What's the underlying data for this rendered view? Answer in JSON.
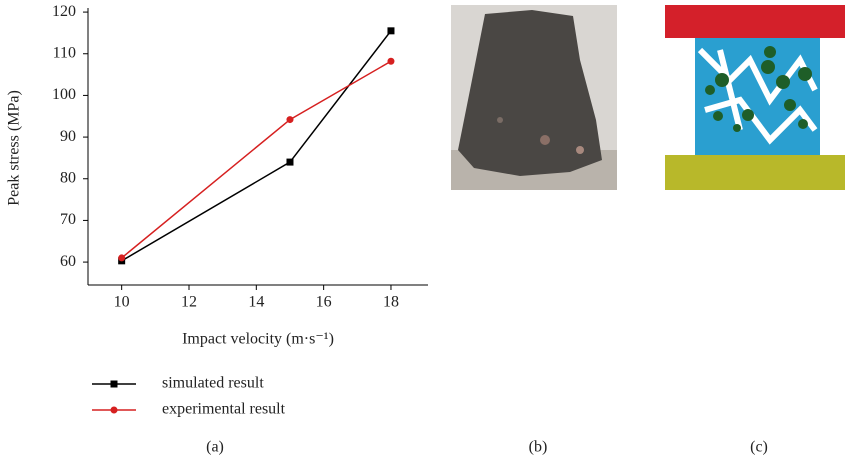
{
  "chart_data": {
    "type": "line",
    "y_label": "Peak stress (MPa)",
    "x_label": "Impact velocity (m·s⁻¹)",
    "xlim": [
      9,
      19.1
    ],
    "xticks": [
      10,
      12,
      14,
      16,
      18
    ],
    "ylim": [
      54.5,
      120.5
    ],
    "yticks": [
      60,
      70,
      80,
      90,
      100,
      110,
      120
    ],
    "series": [
      {
        "name": "simulated result",
        "color": "#000000",
        "marker": "square",
        "x": [
          10,
          15,
          18
        ],
        "values": [
          60.3,
          84,
          115.5
        ]
      },
      {
        "name": "experimental result",
        "color": "#d62020",
        "marker": "circle",
        "x": [
          10,
          15,
          18
        ],
        "values": [
          61,
          94.2,
          108.2
        ]
      }
    ]
  },
  "panels": [
    "(a)",
    "(b)",
    "(c)"
  ]
}
